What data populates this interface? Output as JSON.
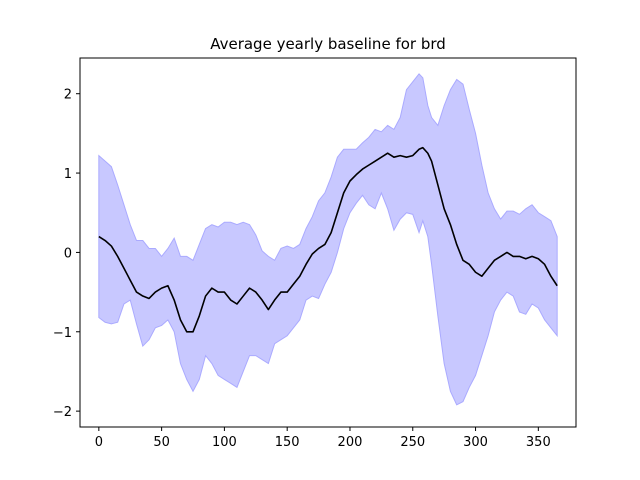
{
  "chart_data": {
    "type": "line",
    "title": "Average yearly baseline for brd",
    "xlabel": "",
    "ylabel": "",
    "xlim": [
      -15,
      380
    ],
    "ylim": [
      -2.2,
      2.45
    ],
    "xticks": [
      0,
      50,
      100,
      150,
      200,
      250,
      300,
      350
    ],
    "yticks": [
      -2,
      -1,
      0,
      1,
      2
    ],
    "xtick_labels": [
      "0",
      "50",
      "100",
      "150",
      "200",
      "250",
      "300",
      "350"
    ],
    "ytick_labels": [
      "−2",
      "−1",
      "0",
      "1",
      "2"
    ],
    "grid": false,
    "legend": "none",
    "colors": {
      "line": "#000000",
      "band_fill": "#c8c8ff",
      "band_edge": "#aaaaff"
    },
    "series": [
      {
        "x": [
          0,
          5,
          10,
          15,
          20,
          25,
          30,
          35,
          40,
          45,
          50,
          55,
          60,
          65,
          70,
          75,
          80,
          85,
          90,
          95,
          100,
          105,
          110,
          115,
          120,
          125,
          130,
          135,
          140,
          145,
          150,
          155,
          160,
          165,
          170,
          175,
          180,
          185,
          190,
          195,
          200,
          205,
          210,
          215,
          220,
          225,
          230,
          235,
          240,
          245,
          250,
          255,
          258,
          262,
          265,
          270,
          275,
          280,
          285,
          290,
          295,
          300,
          305,
          310,
          315,
          320,
          325,
          330,
          335,
          340,
          345,
          350,
          355,
          360,
          365
        ],
        "mean": [
          0.2,
          0.15,
          0.08,
          -0.05,
          -0.2,
          -0.35,
          -0.5,
          -0.55,
          -0.58,
          -0.5,
          -0.45,
          -0.42,
          -0.6,
          -0.85,
          -1.0,
          -1.0,
          -0.8,
          -0.55,
          -0.45,
          -0.5,
          -0.5,
          -0.6,
          -0.65,
          -0.55,
          -0.45,
          -0.5,
          -0.6,
          -0.72,
          -0.6,
          -0.5,
          -0.5,
          -0.4,
          -0.3,
          -0.15,
          -0.02,
          0.05,
          0.1,
          0.25,
          0.5,
          0.75,
          0.9,
          0.98,
          1.05,
          1.1,
          1.15,
          1.2,
          1.25,
          1.2,
          1.22,
          1.2,
          1.22,
          1.3,
          1.32,
          1.25,
          1.15,
          0.85,
          0.55,
          0.35,
          0.1,
          -0.1,
          -0.15,
          -0.25,
          -0.3,
          -0.2,
          -0.1,
          -0.05,
          0.0,
          -0.05,
          -0.05,
          -0.08,
          -0.05,
          -0.08,
          -0.15,
          -0.3,
          -0.42
        ],
        "lower": [
          -0.82,
          -0.88,
          -0.9,
          -0.88,
          -0.65,
          -0.6,
          -0.9,
          -1.18,
          -1.1,
          -0.95,
          -0.92,
          -0.85,
          -1.0,
          -1.4,
          -1.6,
          -1.75,
          -1.6,
          -1.3,
          -1.4,
          -1.55,
          -1.6,
          -1.65,
          -1.7,
          -1.5,
          -1.3,
          -1.3,
          -1.35,
          -1.4,
          -1.15,
          -1.1,
          -1.05,
          -0.95,
          -0.85,
          -0.6,
          -0.55,
          -0.58,
          -0.4,
          -0.25,
          0.0,
          0.3,
          0.5,
          0.62,
          0.72,
          0.6,
          0.55,
          0.75,
          0.55,
          0.28,
          0.42,
          0.5,
          0.48,
          0.25,
          0.4,
          0.2,
          -0.15,
          -0.8,
          -1.4,
          -1.75,
          -1.92,
          -1.88,
          -1.7,
          -1.55,
          -1.3,
          -1.05,
          -0.75,
          -0.6,
          -0.5,
          -0.55,
          -0.75,
          -0.78,
          -0.65,
          -0.7,
          -0.85,
          -0.95,
          -1.05
        ],
        "upper": [
          1.22,
          1.15,
          1.08,
          0.85,
          0.6,
          0.35,
          0.15,
          0.15,
          0.05,
          0.05,
          -0.05,
          0.05,
          0.18,
          -0.05,
          -0.05,
          -0.1,
          0.1,
          0.3,
          0.35,
          0.32,
          0.38,
          0.38,
          0.35,
          0.38,
          0.35,
          0.22,
          0.02,
          -0.05,
          -0.1,
          0.05,
          0.08,
          0.05,
          0.1,
          0.3,
          0.45,
          0.65,
          0.75,
          0.95,
          1.2,
          1.3,
          1.3,
          1.3,
          1.38,
          1.45,
          1.55,
          1.52,
          1.6,
          1.55,
          1.7,
          2.05,
          2.15,
          2.25,
          2.2,
          1.85,
          1.7,
          1.6,
          1.85,
          2.05,
          2.18,
          2.12,
          1.8,
          1.5,
          1.1,
          0.75,
          0.55,
          0.42,
          0.52,
          0.52,
          0.48,
          0.55,
          0.6,
          0.5,
          0.45,
          0.4,
          0.2
        ]
      }
    ]
  }
}
